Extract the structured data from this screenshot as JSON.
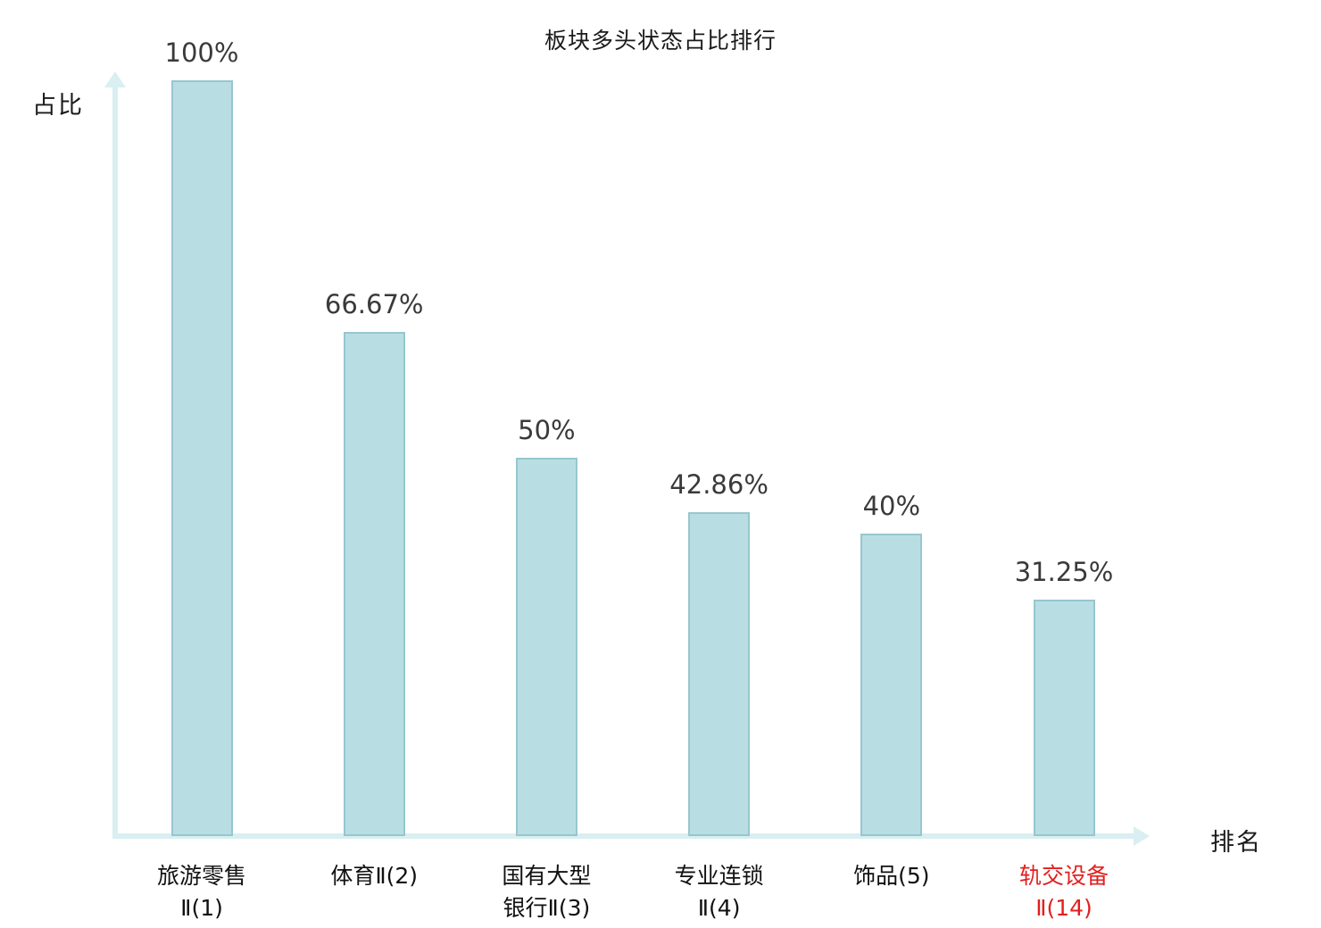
{
  "title": "板块多头状态占比排行",
  "axes": {
    "y_label": "占比",
    "x_label": "排名"
  },
  "colors": {
    "bar_fill": "#b8dee3",
    "bar_border": "#97c6ce",
    "axis": "#d9eff1",
    "value_label": "#3a3a3a",
    "category_default": "#111111",
    "category_highlight": "#e31f1f",
    "background": "#ffffff"
  },
  "chart_data": {
    "type": "bar",
    "title": "板块多头状态占比排行",
    "xlabel": "排名",
    "ylabel": "占比",
    "ylim": [
      0,
      100
    ],
    "grid": "off",
    "legend": "off",
    "categories": [
      "旅游零售Ⅱ(1)",
      "体育Ⅱ(2)",
      "国有大型银行Ⅱ(3)",
      "专业连锁Ⅱ(4)",
      "饰品(5)",
      "轨交设备Ⅱ(14)"
    ],
    "category_lines": [
      [
        "旅游零售",
        "Ⅱ(1)"
      ],
      [
        "体育Ⅱ(2)"
      ],
      [
        "国有大型",
        "银行Ⅱ(3)"
      ],
      [
        "专业连锁",
        "Ⅱ(4)"
      ],
      [
        "饰品(5)"
      ],
      [
        "轨交设备",
        "Ⅱ(14)"
      ]
    ],
    "values": [
      100,
      66.67,
      50,
      42.86,
      40,
      31.25
    ],
    "value_labels": [
      "100%",
      "66.67%",
      "50%",
      "42.86%",
      "40%",
      "31.25%"
    ],
    "highlight_index": 5
  }
}
